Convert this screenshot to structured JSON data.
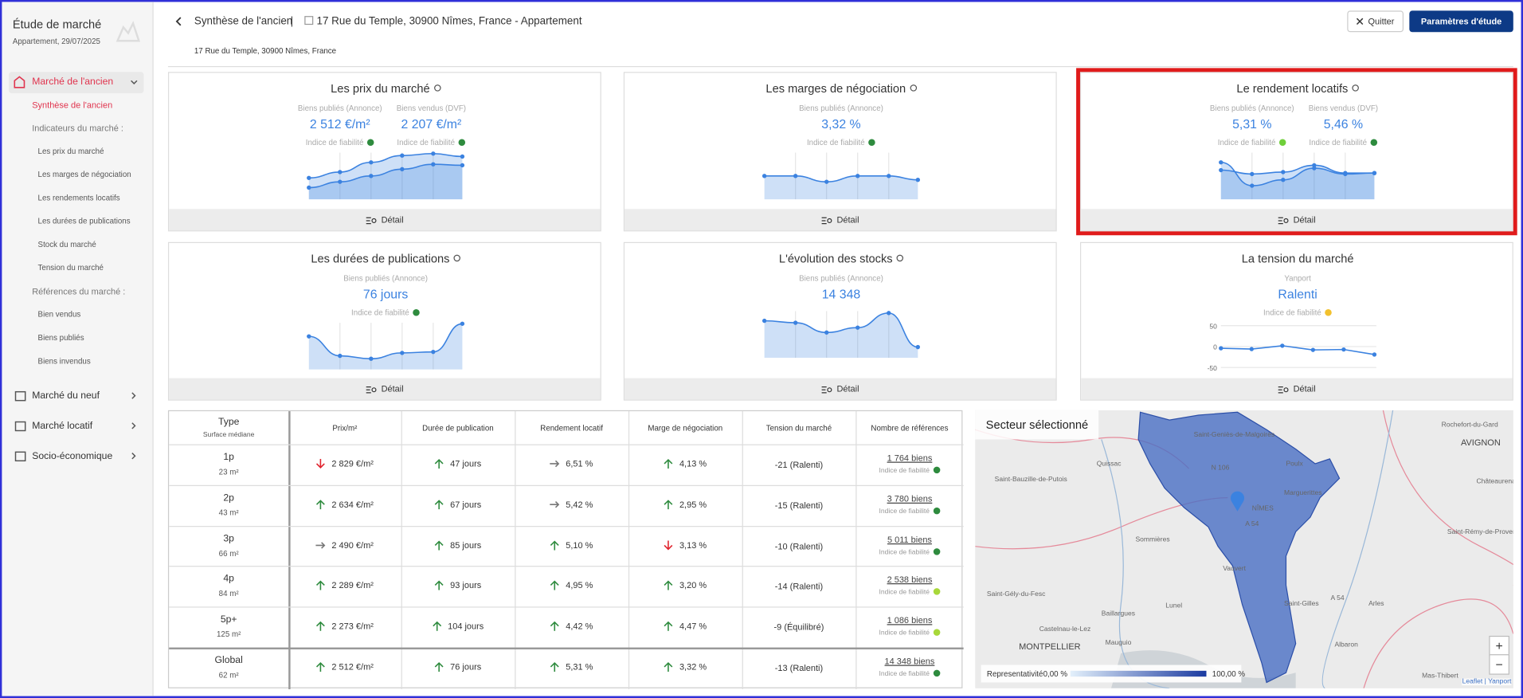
{
  "sidebar": {
    "title": "Étude de marché",
    "subtitle": "Appartement, 29/07/2025",
    "active_section": "Marché de l'ancien",
    "sub_items": [
      {
        "label": "Synthèse de l'ancien",
        "kind": "active"
      },
      {
        "label": "Indicateurs du marché :",
        "kind": "group"
      },
      {
        "label": "Les prix du marché",
        "kind": "link"
      },
      {
        "label": "Les marges de négociation",
        "kind": "link"
      },
      {
        "label": "Les rendements locatifs",
        "kind": "link"
      },
      {
        "label": "Les durées de publications",
        "kind": "link"
      },
      {
        "label": "Stock du marché",
        "kind": "link"
      },
      {
        "label": "Tension du marché",
        "kind": "link"
      },
      {
        "label": "Références du marché :",
        "kind": "group"
      },
      {
        "label": "Bien vendus",
        "kind": "link"
      },
      {
        "label": "Biens publiés",
        "kind": "link"
      },
      {
        "label": "Biens invendus",
        "kind": "link"
      }
    ],
    "sections": [
      "Marché du neuf",
      "Marché locatif",
      "Socio-économique"
    ]
  },
  "header": {
    "title": "Synthèse de l'ancien",
    "separator": "|",
    "address": "17 Rue du Temple, 30900 Nîmes, France - Appartement",
    "subaddress": "17 Rue du Temple, 30900 Nîmes, France",
    "quit": "Quitter",
    "settings": "Paramètres d'étude"
  },
  "cards": [
    {
      "title": "Les prix du marché",
      "info": true,
      "columns": [
        {
          "label": "Biens publiés (Annonce)",
          "value": "2 512 €/m²",
          "reliability": "Indice de fiabilité",
          "dot_color": "#2e8b3e"
        },
        {
          "label": "Biens vendus (DVF)",
          "value": "2 207 €/m²",
          "reliability": "Indice de fiabilité",
          "dot_color": "#2e8b3e"
        }
      ],
      "detail": "Détail"
    },
    {
      "title": "Les marges de négociation",
      "info": true,
      "columns": [
        {
          "label": "Biens publiés (Annonce)",
          "value": "3,32 %",
          "reliability": "Indice de fiabilité",
          "dot_color": "#2e8b3e"
        }
      ],
      "detail": "Détail"
    },
    {
      "title": "Le rendement locatifs",
      "info": true,
      "highlighted": true,
      "columns": [
        {
          "label": "Biens publiés (Annonce)",
          "value": "5,31 %",
          "reliability": "Indice de fiabilité",
          "dot_color": "#6fcf3a"
        },
        {
          "label": "Biens vendus (DVF)",
          "value": "5,46 %",
          "reliability": "Indice de fiabilité",
          "dot_color": "#2e8b3e"
        }
      ],
      "detail": "Détail"
    },
    {
      "title": "Les durées de publications",
      "info": true,
      "columns": [
        {
          "label": "Biens publiés (Annonce)",
          "value": "76 jours",
          "reliability": "Indice de fiabilité",
          "dot_color": "#2e8b3e"
        }
      ],
      "detail": "Détail"
    },
    {
      "title": "L'évolution des stocks",
      "info": true,
      "columns": [
        {
          "label": "Biens publiés (Annonce)",
          "value": "14 348"
        }
      ],
      "detail": "Détail"
    },
    {
      "title": "La tension du marché",
      "info": false,
      "columns": [
        {
          "label": "Yanport",
          "value": "Ralenti",
          "reliability": "Indice de fiabilité",
          "dot_color": "#f2c12e"
        }
      ],
      "detail": "Détail",
      "chart": {
        "type": "line",
        "values": [
          -4,
          -6,
          2,
          -8,
          -7,
          -19
        ],
        "ylim": [
          -50,
          50
        ],
        "yticks": [
          50,
          0,
          -50
        ],
        "color": "#3b82e0"
      }
    }
  ],
  "table": {
    "headers": [
      "Type",
      "Prix/m²",
      "Durée de publication",
      "Rendement locatif",
      "Marge de négociation",
      "Tension du marché",
      "Nombre de références"
    ],
    "type_sub": "Surface médiane",
    "rows": [
      {
        "type": "1p",
        "surface": "23 m²",
        "cells": [
          {
            "trend": "down",
            "text": "2 829 €/m²"
          },
          {
            "trend": "up",
            "text": "47 jours"
          },
          {
            "trend": "flat",
            "text": "6,51 %"
          },
          {
            "trend": "up",
            "text": "4,13 %"
          }
        ],
        "tension": "-21 (Ralenti)",
        "refs": "1 764 biens",
        "reliability": "Indice de fiabilité",
        "dot_color": "#2e8b3e"
      },
      {
        "type": "2p",
        "surface": "43 m²",
        "cells": [
          {
            "trend": "up",
            "text": "2 634 €/m²"
          },
          {
            "trend": "up",
            "text": "67 jours"
          },
          {
            "trend": "flat",
            "text": "5,42 %"
          },
          {
            "trend": "up",
            "text": "2,95 %"
          }
        ],
        "tension": "-15 (Ralenti)",
        "refs": "3 780 biens",
        "reliability": "Indice de fiabilité",
        "dot_color": "#2e8b3e"
      },
      {
        "type": "3p",
        "surface": "66 m²",
        "cells": [
          {
            "trend": "flat",
            "text": "2 490 €/m²"
          },
          {
            "trend": "up",
            "text": "85 jours"
          },
          {
            "trend": "up",
            "text": "5,10 %"
          },
          {
            "trend": "down",
            "text": "3,13 %"
          }
        ],
        "tension": "-10 (Ralenti)",
        "refs": "5 011 biens",
        "reliability": "Indice de fiabilité",
        "dot_color": "#2e8b3e"
      },
      {
        "type": "4p",
        "surface": "84 m²",
        "cells": [
          {
            "trend": "up",
            "text": "2 289 €/m²"
          },
          {
            "trend": "up",
            "text": "93 jours"
          },
          {
            "trend": "up",
            "text": "4,95 %"
          },
          {
            "trend": "up",
            "text": "3,20 %"
          }
        ],
        "tension": "-14 (Ralenti)",
        "refs": "2 538 biens",
        "reliability": "Indice de fiabilité",
        "dot_color": "#a8d83a"
      },
      {
        "type": "5p+",
        "surface": "125 m²",
        "cells": [
          {
            "trend": "up",
            "text": "2 273 €/m²"
          },
          {
            "trend": "up",
            "text": "104 jours"
          },
          {
            "trend": "up",
            "text": "4,42 %"
          },
          {
            "trend": "up",
            "text": "4,47 %"
          }
        ],
        "tension": "-9 (Équilibré)",
        "refs": "1 086 biens",
        "reliability": "Indice de fiabilité",
        "dot_color": "#a8d83a"
      },
      {
        "type": "Global",
        "surface": "62 m²",
        "cells": [
          {
            "trend": "up",
            "text": "2 512 €/m²"
          },
          {
            "trend": "up",
            "text": "76 jours"
          },
          {
            "trend": "up",
            "text": "5,31 %"
          },
          {
            "trend": "up",
            "text": "3,32 %"
          }
        ],
        "tension": "-13 (Ralenti)",
        "refs": "14 348 biens",
        "reliability": "Indice de fiabilité",
        "dot_color": "#2e8b3e"
      }
    ]
  },
  "map": {
    "title": "Secteur sélectionné",
    "places": [
      "Rochefort-du-Gard",
      "AVIGNON",
      "Saint-Geniès-de-Malgoirès",
      "Quissac",
      "Saint-Bauzille-de-Putois",
      "N 106",
      "Poulx",
      "Châteaurenard",
      "Marguerittes",
      "NÎMES",
      "A 54",
      "Sommières",
      "Saint-Rémy-de-Provence",
      "Vauvert",
      "Saint-Gély-du-Fesc",
      "Lunel",
      "Saint-Gilles",
      "A 54",
      "Arles",
      "Baillargues",
      "Castelnau-le-Lez",
      "MONTPELLIER",
      "Mauguio",
      "Albaron",
      "Mas-Thibert"
    ],
    "legend_title": "Representativité",
    "legend_min": "0,00 %",
    "legend_max": "100,00 %",
    "zoom_in": "+",
    "zoom_out": "−",
    "attribution": "Leaflet | Yanport"
  }
}
